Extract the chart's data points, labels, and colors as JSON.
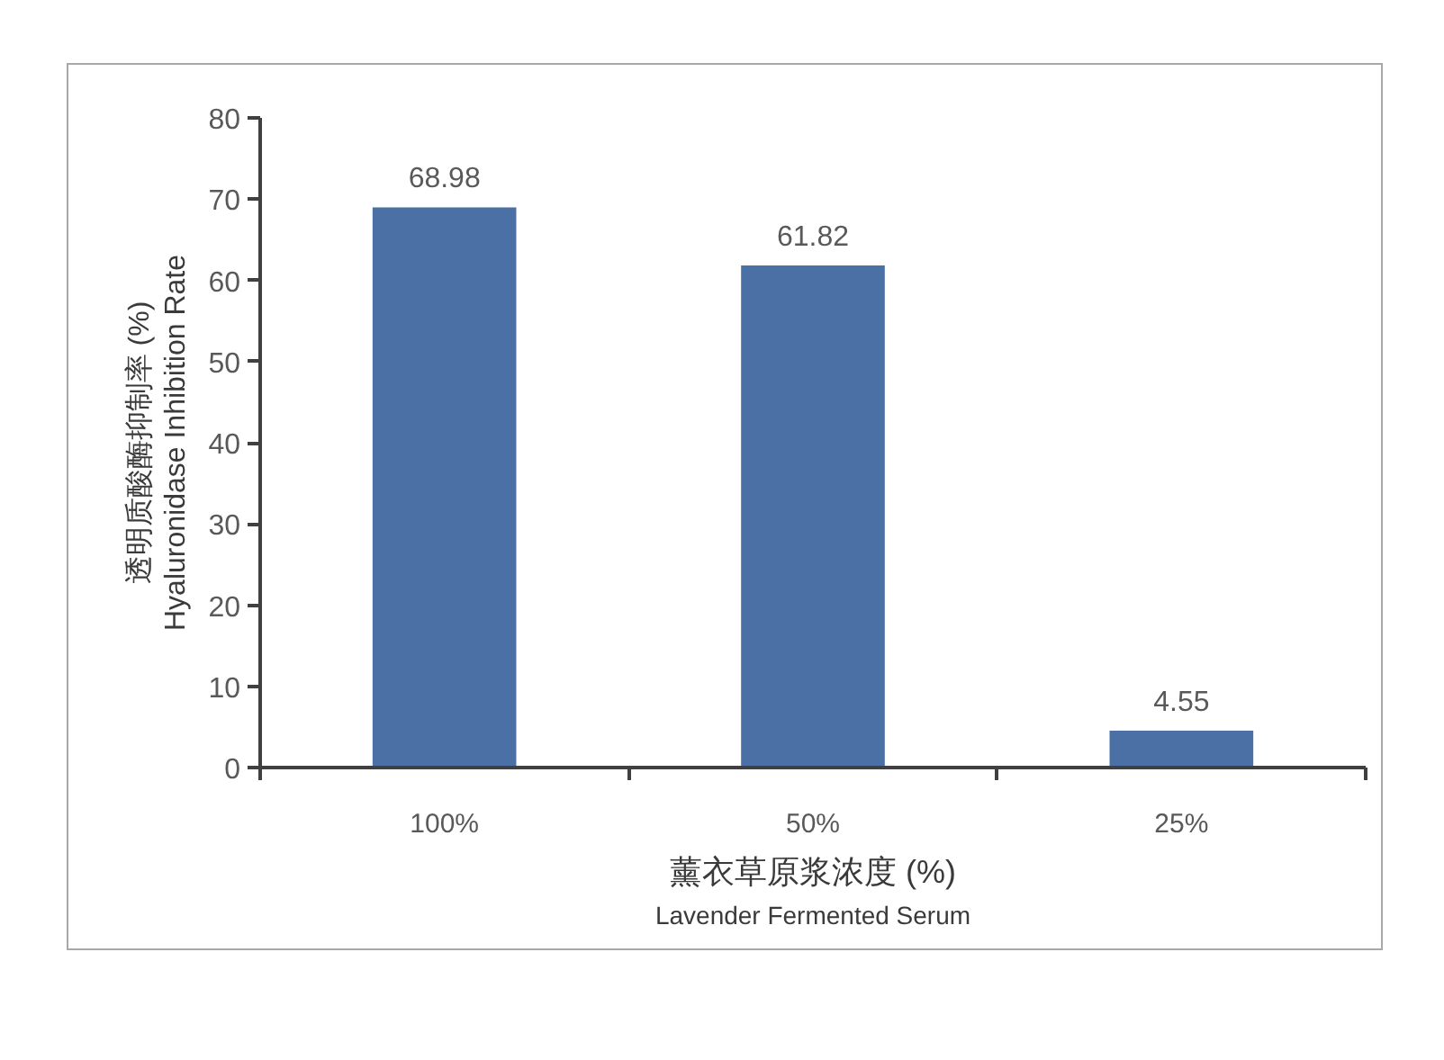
{
  "chart_data": {
    "type": "bar",
    "xlabel": "薰衣草原浆浓度 (%)\nLavender Fermented Serum",
    "ylabel": "透明质酸酶抑制率 (%)\nHyaluronidase Inhibition Rate",
    "categories": [
      "100%",
      "50%",
      "25%"
    ],
    "values": [
      68.98,
      61.82,
      4.55
    ],
    "color": "#4a70a5",
    "ylim": [
      0,
      80
    ],
    "yticks": [
      0,
      10,
      20,
      30,
      40,
      50,
      60,
      70,
      80
    ],
    "data_labels": true,
    "grid": false
  }
}
